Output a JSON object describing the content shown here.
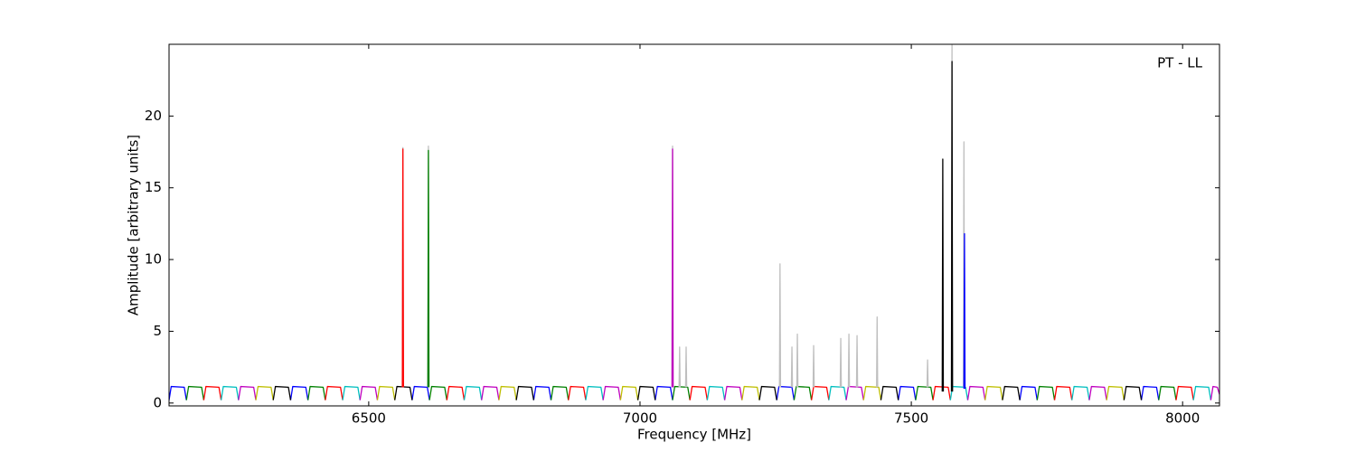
{
  "chart_data": {
    "type": "line",
    "xlabel": "Frequency [MHz]",
    "ylabel": "Amplitude [arbitrary units]",
    "annotation": "PT - LL",
    "xlim": [
      6132,
      8068
    ],
    "ylim": [
      -0.2,
      25
    ],
    "xticks": [
      6500,
      7000,
      7500,
      8000
    ],
    "yticks": [
      0,
      5,
      10,
      15,
      20
    ],
    "series": [
      {
        "color": "#0000ff",
        "x": [
          6132,
          6136,
          6160,
          6164,
          null,
          6356,
          6360,
          6384,
          6388,
          null,
          6580,
          6584,
          6608,
          6612,
          null,
          6804,
          6808,
          6832,
          6836,
          null,
          7028,
          7032,
          7056,
          7060,
          null,
          7252,
          7256,
          7280,
          7284,
          null,
          7476,
          7480,
          7504,
          7508,
          null,
          7700,
          7704,
          7728,
          7732,
          null,
          7924,
          7928,
          7952,
          7956
        ],
        "values": [
          0.2,
          1.15,
          1.1,
          0.2,
          null,
          0.2,
          1.15,
          1.1,
          0.2,
          null,
          0.2,
          1.15,
          1.1,
          0.2,
          null,
          0.2,
          1.15,
          1.1,
          0.2,
          null,
          0.2,
          1.15,
          1.1,
          0.2,
          null,
          0.2,
          1.15,
          1.1,
          0.2,
          null,
          0.2,
          1.15,
          1.1,
          0.2,
          null,
          0.2,
          1.15,
          1.1,
          0.2,
          null,
          0.2,
          1.15,
          1.1,
          0.2
        ]
      },
      {
        "color": "#008000",
        "x": [
          6164,
          6168,
          6192,
          6196,
          null,
          6388,
          6392,
          6416,
          6420,
          null,
          6612,
          6616,
          6640,
          6644,
          null,
          6836,
          6840,
          6864,
          6868,
          null,
          7060,
          7064,
          7088,
          7092,
          null,
          7284,
          7288,
          7312,
          7316,
          null,
          7508,
          7512,
          7536,
          7540,
          null,
          7732,
          7736,
          7760,
          7764,
          null,
          7956,
          7960,
          7984,
          7988
        ],
        "values": [
          0.2,
          1.15,
          1.1,
          0.2,
          null,
          0.2,
          1.15,
          1.1,
          0.2,
          null,
          0.2,
          1.15,
          1.1,
          0.2,
          null,
          0.2,
          1.15,
          1.1,
          0.2,
          null,
          0.2,
          1.15,
          1.1,
          0.2,
          null,
          0.2,
          1.15,
          1.1,
          0.2,
          null,
          0.2,
          1.15,
          1.1,
          0.2,
          null,
          0.2,
          1.15,
          1.1,
          0.2,
          null,
          0.2,
          1.15,
          1.1,
          0.2
        ]
      },
      {
        "color": "#ff0000",
        "x": [
          6196,
          6200,
          6224,
          6228,
          null,
          6420,
          6424,
          6448,
          6452,
          null,
          6644,
          6648,
          6672,
          6676,
          null,
          6868,
          6872,
          6896,
          6900,
          null,
          7092,
          7096,
          7120,
          7124,
          null,
          7316,
          7320,
          7344,
          7348,
          null,
          7540,
          7544,
          7568,
          7572,
          null,
          7764,
          7768,
          7792,
          7796,
          null,
          7988,
          7992,
          8016,
          8020
        ],
        "values": [
          0.2,
          1.15,
          1.1,
          0.2,
          null,
          0.2,
          1.15,
          1.1,
          0.2,
          null,
          0.2,
          1.15,
          1.1,
          0.2,
          null,
          0.2,
          1.15,
          1.1,
          0.2,
          null,
          0.2,
          1.15,
          1.1,
          0.2,
          null,
          0.2,
          1.15,
          1.1,
          0.2,
          null,
          0.2,
          1.15,
          1.1,
          0.2,
          null,
          0.2,
          1.15,
          1.1,
          0.2,
          null,
          0.2,
          1.15,
          1.1,
          0.2
        ]
      },
      {
        "color": "#00bfbf",
        "x": [
          6228,
          6232,
          6256,
          6260,
          null,
          6452,
          6456,
          6480,
          6484,
          null,
          6676,
          6680,
          6704,
          6708,
          null,
          6900,
          6904,
          6928,
          6932,
          null,
          7124,
          7128,
          7152,
          7156,
          null,
          7348,
          7352,
          7376,
          7380,
          null,
          7572,
          7576,
          7600,
          7604,
          null,
          7796,
          7800,
          7824,
          7828,
          null,
          8020,
          8024,
          8048,
          8052
        ],
        "values": [
          0.2,
          1.15,
          1.1,
          0.2,
          null,
          0.2,
          1.15,
          1.1,
          0.2,
          null,
          0.2,
          1.15,
          1.1,
          0.2,
          null,
          0.2,
          1.15,
          1.1,
          0.2,
          null,
          0.2,
          1.15,
          1.1,
          0.2,
          null,
          0.2,
          1.15,
          1.1,
          0.2,
          null,
          0.2,
          1.15,
          1.1,
          0.2,
          null,
          0.2,
          1.15,
          1.1,
          0.2,
          null,
          0.2,
          1.15,
          1.1,
          0.2
        ]
      },
      {
        "color": "#bf00bf",
        "x": [
          6260,
          6264,
          6288,
          6292,
          null,
          6484,
          6488,
          6512,
          6516,
          null,
          6708,
          6712,
          6736,
          6740,
          null,
          6932,
          6936,
          6960,
          6964,
          null,
          7156,
          7160,
          7184,
          7188,
          null,
          7380,
          7384,
          7408,
          7412,
          null,
          7604,
          7608,
          7632,
          7636,
          null,
          7828,
          7832,
          7856,
          7860,
          null,
          8052,
          8056,
          8064,
          8068
        ],
        "values": [
          0.2,
          1.15,
          1.1,
          0.2,
          null,
          0.2,
          1.15,
          1.1,
          0.2,
          null,
          0.2,
          1.15,
          1.1,
          0.2,
          null,
          0.2,
          1.15,
          1.1,
          0.2,
          null,
          0.2,
          1.15,
          1.1,
          0.2,
          null,
          0.2,
          1.15,
          1.1,
          0.2,
          null,
          0.2,
          1.15,
          1.1,
          0.2,
          null,
          0.2,
          1.15,
          1.1,
          0.2,
          null,
          0.2,
          1.15,
          1.1,
          0.6
        ]
      },
      {
        "color": "#bfbf00",
        "x": [
          6292,
          6296,
          6320,
          6324,
          null,
          6516,
          6520,
          6544,
          6548,
          null,
          6740,
          6744,
          6768,
          6772,
          null,
          6964,
          6968,
          6992,
          6996,
          null,
          7188,
          7192,
          7216,
          7220,
          null,
          7412,
          7416,
          7440,
          7444,
          null,
          7636,
          7640,
          7664,
          7668,
          null,
          7860,
          7864,
          7888,
          7892
        ],
        "values": [
          0.2,
          1.15,
          1.1,
          0.2,
          null,
          0.2,
          1.15,
          1.1,
          0.2,
          null,
          0.2,
          1.15,
          1.1,
          0.2,
          null,
          0.2,
          1.15,
          1.1,
          0.2,
          null,
          0.2,
          1.15,
          1.1,
          0.2,
          null,
          0.2,
          1.15,
          1.1,
          0.2,
          null,
          0.2,
          1.15,
          1.1,
          0.2,
          null,
          0.2,
          1.15,
          1.1,
          0.2
        ]
      },
      {
        "color": "#000000",
        "x": [
          6324,
          6328,
          6352,
          6356,
          null,
          6548,
          6552,
          6576,
          6580,
          null,
          6772,
          6776,
          6800,
          6804,
          null,
          6996,
          7000,
          7024,
          7028,
          null,
          7220,
          7224,
          7248,
          7252,
          null,
          7444,
          7448,
          7472,
          7476,
          null,
          7668,
          7672,
          7696,
          7700,
          null,
          7892,
          7896,
          7920,
          7924
        ],
        "values": [
          0.2,
          1.15,
          1.1,
          0.2,
          null,
          0.2,
          1.15,
          1.1,
          0.2,
          null,
          0.2,
          1.15,
          1.1,
          0.2,
          null,
          0.2,
          1.15,
          1.1,
          0.2,
          null,
          0.2,
          1.15,
          1.1,
          0.2,
          null,
          0.2,
          1.15,
          1.1,
          0.2,
          null,
          0.2,
          1.15,
          1.1,
          0.2,
          null,
          0.2,
          1.15,
          1.1,
          0.2
        ]
      },
      {
        "color": "#bfbfbf",
        "x": [
          6562,
          6563,
          6564,
          null,
          6609,
          6610,
          6611,
          null,
          7059,
          7060,
          7061,
          null,
          7072,
          7073,
          7074,
          null,
          7084,
          7085,
          7086,
          null,
          7257,
          7258,
          7259,
          null,
          7279,
          7280,
          7281,
          null,
          7289,
          7290,
          7291,
          null,
          7319,
          7320,
          7321,
          null,
          7369,
          7370,
          7371,
          null,
          7384,
          7385,
          7386,
          null,
          7399,
          7400,
          7401,
          null,
          7436,
          7437,
          7438,
          null,
          7529,
          7530,
          7531,
          null,
          7574,
          7575,
          7576,
          null,
          7596,
          7597,
          7598
        ],
        "values": [
          1.1,
          17.8,
          1.1,
          null,
          1.1,
          17.9,
          1.1,
          null,
          1.1,
          17.9,
          1.1,
          null,
          1.1,
          3.9,
          1.1,
          null,
          1.1,
          3.9,
          1.1,
          null,
          1.1,
          9.7,
          1.1,
          null,
          1.1,
          3.9,
          1.1,
          null,
          1.1,
          4.8,
          1.1,
          null,
          1.1,
          4.0,
          1.1,
          null,
          1.1,
          4.5,
          1.1,
          null,
          1.1,
          4.8,
          1.1,
          null,
          1.1,
          4.7,
          1.1,
          null,
          1.1,
          6.0,
          1.1,
          null,
          1.1,
          3.0,
          1.1,
          null,
          1.1,
          25.0,
          1.1,
          null,
          1.1,
          18.2,
          1.1
        ]
      },
      {
        "color": "#ff0000",
        "x": [
          6562,
          6563,
          6564
        ],
        "values": [
          1.1,
          17.7,
          1.1
        ]
      },
      {
        "color": "#008000",
        "x": [
          6609,
          6610,
          6611
        ],
        "values": [
          1.1,
          17.6,
          1.1
        ]
      },
      {
        "color": "#bf00bf",
        "x": [
          7059,
          7060,
          7061
        ],
        "values": [
          1.1,
          17.7,
          1.1
        ]
      },
      {
        "color": "#000000",
        "x": [
          7557,
          7558,
          7559,
          null,
          7574,
          7575,
          7576
        ],
        "values": [
          0.8,
          17.0,
          0.8,
          null,
          0.8,
          23.8,
          0.8
        ]
      },
      {
        "color": "#0000ff",
        "x": [
          7597,
          7598,
          7599
        ],
        "values": [
          1.0,
          11.8,
          1.0
        ]
      }
    ]
  }
}
